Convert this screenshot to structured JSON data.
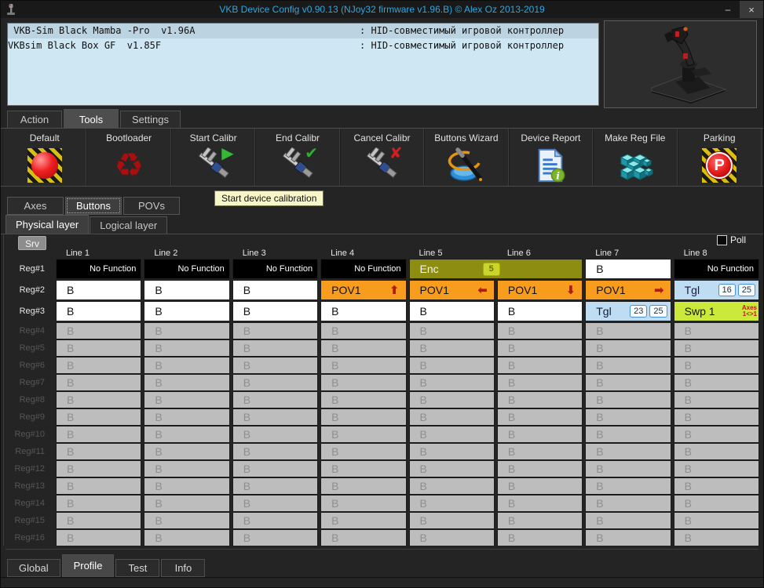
{
  "window": {
    "title": "VKB Device Config v0.90.13 (NJoy32 firmware v1.96.B) © Alex Oz 2013-2019",
    "minimize": "–",
    "close": "×"
  },
  "devices": [
    {
      "name": " VKB-Sim Black Mamba -Pro  v1.96A",
      "desc": ": HID-совместимый игровой контроллер",
      "selected": true
    },
    {
      "name": "VKBsim Black Box GF  v1.85F",
      "desc": ": HID-совместимый игровой контроллер",
      "selected": false
    }
  ],
  "menu_tabs": [
    {
      "label": "Action",
      "active": false
    },
    {
      "label": "Tools",
      "active": true
    },
    {
      "label": "Settings",
      "active": false
    }
  ],
  "toolbar": [
    {
      "label": "Default",
      "icon": "hazard-ball-icon"
    },
    {
      "label": "Bootloader",
      "icon": "recycle-icon"
    },
    {
      "label": "Start Calibr",
      "icon": "caliper-play-icon"
    },
    {
      "label": "End Calibr",
      "icon": "caliper-check-icon"
    },
    {
      "label": "Cancel Calibr",
      "icon": "caliper-cross-icon"
    },
    {
      "label": "Buttons Wizard",
      "icon": "wizard-icon"
    },
    {
      "label": "Device Report",
      "icon": "report-icon"
    },
    {
      "label": "Make Reg File",
      "icon": "registry-cubes-icon"
    },
    {
      "label": "Parking",
      "icon": "parking-icon"
    }
  ],
  "tooltip": "Start device calibration",
  "section_tabs": [
    {
      "label": "Axes",
      "active": false
    },
    {
      "label": "Buttons",
      "active": true
    },
    {
      "label": "POVs",
      "active": false
    }
  ],
  "layer_tabs": [
    {
      "label": "Physical layer",
      "active": true
    },
    {
      "label": "Logical layer",
      "active": false
    }
  ],
  "grid": {
    "srv_label": "Srv",
    "poll_label": "Poll",
    "columns": [
      "Line 1",
      "Line 2",
      "Line 3",
      "Line 4",
      "Line 5",
      "Line 6",
      "Line 7",
      "Line 8"
    ],
    "rows": [
      {
        "label": "Reg#1",
        "disabled": false,
        "cells": [
          {
            "type": "nofunc",
            "text": "No Function"
          },
          {
            "type": "nofunc",
            "text": "No Function"
          },
          {
            "type": "nofunc",
            "text": "No Function"
          },
          {
            "type": "nofunc",
            "text": "No Function"
          },
          {
            "type": "enc",
            "text": "Enc",
            "badge": "5",
            "span": 2
          },
          {
            "type": "b",
            "text": "B"
          },
          {
            "type": "nofunc",
            "text": "No Function"
          }
        ]
      },
      {
        "label": "Reg#2",
        "disabled": false,
        "cells": [
          {
            "type": "b",
            "text": "B"
          },
          {
            "type": "b",
            "text": "B"
          },
          {
            "type": "b",
            "text": "B"
          },
          {
            "type": "pov",
            "text": "POV1",
            "arrow": "up"
          },
          {
            "type": "pov",
            "text": "POV1",
            "arrow": "left"
          },
          {
            "type": "pov",
            "text": "POV1",
            "arrow": "down"
          },
          {
            "type": "pov",
            "text": "POV1",
            "arrow": "right"
          },
          {
            "type": "tgl",
            "text": "Tgl",
            "badges": [
              "16",
              "25"
            ]
          }
        ]
      },
      {
        "label": "Reg#3",
        "disabled": false,
        "cells": [
          {
            "type": "b",
            "text": "B"
          },
          {
            "type": "b",
            "text": "B"
          },
          {
            "type": "b",
            "text": "B"
          },
          {
            "type": "b",
            "text": "B"
          },
          {
            "type": "b",
            "text": "B"
          },
          {
            "type": "b",
            "text": "B"
          },
          {
            "type": "tgl",
            "text": "Tgl",
            "badges": [
              "23",
              "25"
            ]
          },
          {
            "type": "swp",
            "text": "Swp 1",
            "note_top": "Axes",
            "note_bottom": "1<>1"
          }
        ]
      },
      {
        "label": "Reg#4",
        "disabled": true,
        "fill": {
          "type": "b",
          "text": "B",
          "count": 8
        }
      },
      {
        "label": "Reg#5",
        "disabled": true,
        "fill": {
          "type": "b",
          "text": "B",
          "count": 8
        }
      },
      {
        "label": "Reg#6",
        "disabled": true,
        "fill": {
          "type": "b",
          "text": "B",
          "count": 8
        }
      },
      {
        "label": "Reg#7",
        "disabled": true,
        "fill": {
          "type": "b",
          "text": "B",
          "count": 8
        }
      },
      {
        "label": "Reg#8",
        "disabled": true,
        "fill": {
          "type": "b",
          "text": "B",
          "count": 8
        }
      },
      {
        "label": "Reg#9",
        "disabled": true,
        "fill": {
          "type": "b",
          "text": "B",
          "count": 8
        }
      },
      {
        "label": "Reg#10",
        "disabled": true,
        "fill": {
          "type": "b",
          "text": "B",
          "count": 8
        }
      },
      {
        "label": "Reg#11",
        "disabled": true,
        "fill": {
          "type": "b",
          "text": "B",
          "count": 8
        }
      },
      {
        "label": "Reg#12",
        "disabled": true,
        "fill": {
          "type": "b",
          "text": "B",
          "count": 8
        }
      },
      {
        "label": "Reg#13",
        "disabled": true,
        "fill": {
          "type": "b",
          "text": "B",
          "count": 8
        }
      },
      {
        "label": "Reg#14",
        "disabled": true,
        "fill": {
          "type": "b",
          "text": "B",
          "count": 8
        }
      },
      {
        "label": "Reg#15",
        "disabled": true,
        "fill": {
          "type": "b",
          "text": "B",
          "count": 8
        }
      },
      {
        "label": "Reg#16",
        "disabled": true,
        "fill": {
          "type": "b",
          "text": "B",
          "count": 8
        }
      }
    ]
  },
  "bottom_tabs": [
    {
      "label": "Global",
      "active": false
    },
    {
      "label": "Profile",
      "active": true
    },
    {
      "label": "Test",
      "active": false
    },
    {
      "label": "Info",
      "active": false
    }
  ],
  "arrow_glyphs": {
    "up": "⬆",
    "left": "⬅",
    "down": "⬇",
    "right": "➡"
  },
  "colors": {
    "title_text": "#2fa7e0",
    "pov_orange": "#f89c1e",
    "enc_olive": "#8d8d12",
    "tgl_blue": "#bedcf2",
    "swp_green": "#cbe93b",
    "device_list_bg": "#cfe6f3"
  }
}
